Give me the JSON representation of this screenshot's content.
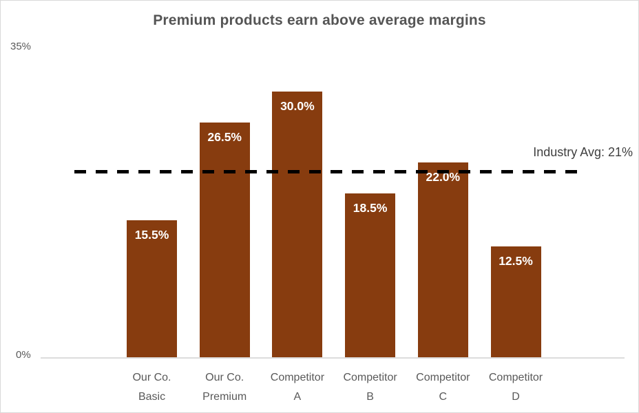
{
  "chart_data": {
    "type": "bar",
    "title": "Premium products earn above average margins",
    "categories": [
      "Our Co. Basic",
      "Our Co. Premium",
      "Competitor A",
      "Competitor B",
      "Competitor C",
      "Competitor D"
    ],
    "category_lines": [
      [
        "Our Co.",
        "Basic"
      ],
      [
        "Our Co.",
        "Premium"
      ],
      [
        "Competitor",
        "A"
      ],
      [
        "Competitor",
        "B"
      ],
      [
        "Competitor",
        "C"
      ],
      [
        "Competitor",
        "D"
      ]
    ],
    "values": [
      15.5,
      26.5,
      30.0,
      18.5,
      22.0,
      12.5
    ],
    "value_labels": [
      "15.5%",
      "26.5%",
      "30.0%",
      "18.5%",
      "22.0%",
      "12.5%"
    ],
    "ylabel": "",
    "xlabel": "",
    "ylim": [
      0,
      35
    ],
    "y_ticks": {
      "top": "35%",
      "bottom": "0%"
    },
    "grid": false,
    "legend": "none",
    "bar_color": "#873C0F",
    "reference_line": {
      "value": 21,
      "label": "Industry Avg: 21%",
      "style": "dashed",
      "color": "#000000"
    }
  },
  "colors": {
    "bar": "#873C0F",
    "title_text": "#555555",
    "axis_text": "#595959",
    "annotation_text": "#3F3F3F",
    "axis_line": "#DCDCDC",
    "reference_dash": "#000000",
    "value_label_text": "#FFFFFF",
    "frame_border": "#D9D9D9"
  }
}
